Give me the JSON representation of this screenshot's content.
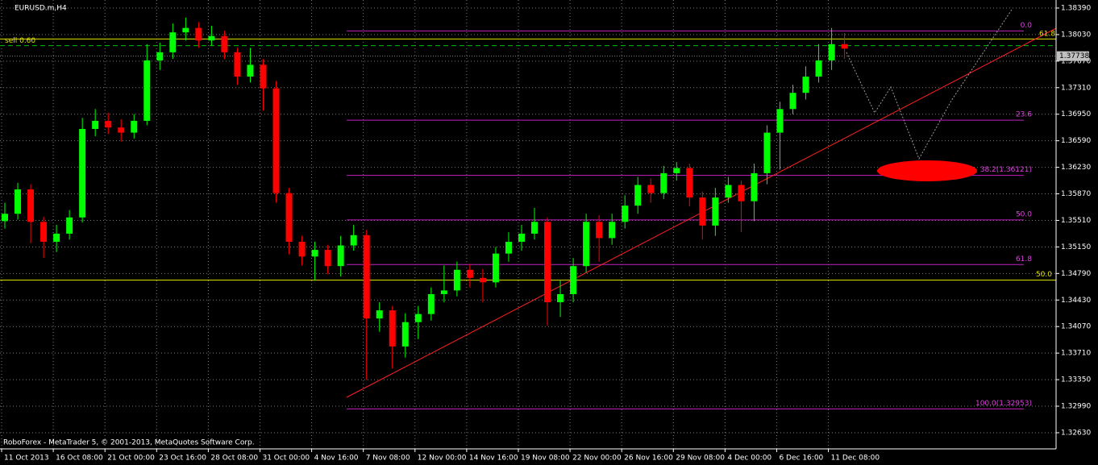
{
  "chart_data": {
    "type": "candlestick",
    "title": "EURUSD.m,H4",
    "footer": "RoboForex - MetaTrader 5, © 2001-2013, MetaQuotes Software Corp.",
    "up_color": "#00ff00",
    "down_color": "#ff0000",
    "grid": true,
    "x": [
      1,
      5,
      9,
      13,
      17,
      21,
      25,
      29,
      33,
      37,
      41,
      45,
      49,
      53,
      57,
      61,
      65,
      69,
      73,
      77,
      81,
      85,
      89,
      93,
      97,
      101,
      105,
      109,
      113,
      117,
      121,
      125,
      129,
      133,
      137,
      141,
      145,
      149,
      153,
      157,
      161,
      165,
      169,
      173,
      177,
      181,
      185,
      189,
      193,
      197,
      201,
      205,
      209,
      213,
      217,
      221,
      225,
      229,
      233,
      237,
      241,
      245,
      249,
      253,
      257,
      261
    ],
    "open": [
      1.355,
      1.356,
      1.3593,
      1.3549,
      1.3522,
      1.3533,
      1.3555,
      1.3675,
      1.3686,
      1.3677,
      1.367,
      1.3686,
      1.3768,
      1.3779,
      1.3806,
      1.3812,
      1.3795,
      1.3801,
      1.3779,
      1.3746,
      1.3762,
      1.373,
      1.3588,
      1.3522,
      1.3502,
      1.3511,
      1.3489,
      1.3517,
      1.3531,
      1.3418,
      1.3429,
      1.338,
      1.3413,
      1.3424,
      1.3451,
      1.3456,
      1.3484,
      1.3473,
      1.3467,
      1.3506,
      1.3522,
      1.3533,
      1.3549,
      1.344,
      1.3451,
      1.3489,
      1.3549,
      1.3527,
      1.3549,
      1.3571,
      1.3599,
      1.3588,
      1.3615,
      1.3622,
      1.3582,
      1.3544,
      1.3582,
      1.3599,
      1.3577,
      1.3615,
      1.367,
      1.3702,
      1.3724,
      1.3746,
      1.3768,
      1.379
    ],
    "high": [
      1.3575,
      1.3602,
      1.36,
      1.3556,
      1.3545,
      1.3565,
      1.369,
      1.3702,
      1.3697,
      1.3688,
      1.3695,
      1.379,
      1.3792,
      1.3818,
      1.3826,
      1.382,
      1.3815,
      1.3808,
      1.3785,
      1.3785,
      1.377,
      1.374,
      1.3595,
      1.353,
      1.3522,
      1.3518,
      1.353,
      1.3545,
      1.3538,
      1.344,
      1.3435,
      1.3425,
      1.3435,
      1.346,
      1.349,
      1.3495,
      1.3492,
      1.3485,
      1.3515,
      1.3535,
      1.3545,
      1.3568,
      1.3555,
      1.347,
      1.35,
      1.356,
      1.3558,
      1.356,
      1.3585,
      1.361,
      1.3608,
      1.3625,
      1.363,
      1.3628,
      1.359,
      1.3595,
      1.361,
      1.3605,
      1.3628,
      1.368,
      1.3712,
      1.3735,
      1.376,
      1.379,
      1.3812,
      1.3805
    ],
    "low": [
      1.354,
      1.3552,
      1.352,
      1.35,
      1.3508,
      1.3525,
      1.3548,
      1.3665,
      1.3668,
      1.3658,
      1.3662,
      1.368,
      1.3755,
      1.377,
      1.3795,
      1.3785,
      1.3788,
      1.377,
      1.3735,
      1.3738,
      1.37,
      1.3575,
      1.3505,
      1.349,
      1.347,
      1.3478,
      1.3475,
      1.351,
      1.3335,
      1.34,
      1.335,
      1.3365,
      1.339,
      1.3415,
      1.344,
      1.3448,
      1.346,
      1.344,
      1.346,
      1.3495,
      1.351,
      1.3525,
      1.3408,
      1.342,
      1.344,
      1.348,
      1.3495,
      1.3518,
      1.354,
      1.356,
      1.3575,
      1.358,
      1.3605,
      1.357,
      1.3525,
      1.353,
      1.3575,
      1.3535,
      1.355,
      1.36,
      1.362,
      1.3695,
      1.3715,
      1.3738,
      1.3755,
      1.377
    ],
    "close": [
      1.356,
      1.3593,
      1.3549,
      1.3522,
      1.3533,
      1.3555,
      1.3675,
      1.3686,
      1.3677,
      1.367,
      1.3686,
      1.3768,
      1.3779,
      1.3806,
      1.3812,
      1.3795,
      1.3801,
      1.3779,
      1.3746,
      1.3762,
      1.373,
      1.3588,
      1.3522,
      1.3502,
      1.3511,
      1.3489,
      1.3517,
      1.3531,
      1.3418,
      1.3429,
      1.338,
      1.3413,
      1.3424,
      1.3451,
      1.3456,
      1.3484,
      1.3473,
      1.3467,
      1.3506,
      1.3522,
      1.3533,
      1.3549,
      1.344,
      1.3451,
      1.3489,
      1.3549,
      1.3527,
      1.3549,
      1.3571,
      1.3599,
      1.3588,
      1.3615,
      1.3622,
      1.3582,
      1.3544,
      1.3582,
      1.3599,
      1.3577,
      1.3615,
      1.367,
      1.3702,
      1.3724,
      1.3746,
      1.3768,
      1.379,
      1.3784
    ],
    "xlim": [
      -0.5,
      326.5
    ],
    "ylim": [
      1.32411,
      1.38499
    ],
    "xticks": [
      {
        "value": 0,
        "label": "11 Oct 2013"
      },
      {
        "value": 16,
        "label": "16 Oct 08:00"
      },
      {
        "value": 32,
        "label": "21 Oct 00:00"
      },
      {
        "value": 48,
        "label": "23 Oct 16:00"
      },
      {
        "value": 64,
        "label": "28 Oct 08:00"
      },
      {
        "value": 80,
        "label": "31 Oct 00:00"
      },
      {
        "value": 96,
        "label": "4 Nov 16:00"
      },
      {
        "value": 112,
        "label": "7 Nov 08:00"
      },
      {
        "value": 128,
        "label": "12 Nov 00:00"
      },
      {
        "value": 144,
        "label": "14 Nov 16:00"
      },
      {
        "value": 160,
        "label": "19 Nov 08:00"
      },
      {
        "value": 176,
        "label": "22 Nov 00:00"
      },
      {
        "value": 192,
        "label": "26 Nov 16:00"
      },
      {
        "value": 208,
        "label": "29 Nov 08:00"
      },
      {
        "value": 224,
        "label": "4 Dec 00:00"
      },
      {
        "value": 240,
        "label": "6 Dec 16:00"
      },
      {
        "value": 256,
        "label": "11 Dec 08:00"
      }
    ],
    "yticks": [
      {
        "value": 1.3839,
        "label": "1.38390"
      },
      {
        "value": 1.3803,
        "label": "1.38030"
      },
      {
        "value": 1.3767,
        "label": "1.37670"
      },
      {
        "value": 1.3731,
        "label": "1.37310"
      },
      {
        "value": 1.3695,
        "label": "1.36950"
      },
      {
        "value": 1.3659,
        "label": "1.36590"
      },
      {
        "value": 1.3623,
        "label": "1.36230"
      },
      {
        "value": 1.3587,
        "label": "1.35870"
      },
      {
        "value": 1.3551,
        "label": "1.35510"
      },
      {
        "value": 1.3515,
        "label": "1.35150"
      },
      {
        "value": 1.3479,
        "label": "1.34790"
      },
      {
        "value": 1.3443,
        "label": "1.34430"
      },
      {
        "value": 1.3407,
        "label": "1.34070"
      },
      {
        "value": 1.3371,
        "label": "1.33710"
      },
      {
        "value": 1.3335,
        "label": "1.33350"
      },
      {
        "value": 1.3299,
        "label": "1.32990"
      },
      {
        "value": 1.3263,
        "label": "1.32630"
      }
    ],
    "fib_levels": [
      {
        "label": "0.0",
        "value": 1.38079
      },
      {
        "label": "23.6",
        "value": 1.36869
      },
      {
        "label": "38.2(1.36121)",
        "value": 1.36121
      },
      {
        "label": "50.0",
        "value": 1.35516
      },
      {
        "label": "61.8",
        "value": 1.34911
      },
      {
        "label": "100.0(1.32953)",
        "value": 1.32953
      }
    ],
    "sell_line": {
      "label": "sell 0.60",
      "value": 1.3797
    },
    "stop_line": {
      "value": 1.3788
    },
    "support_line": {
      "label": "50.0",
      "value": 1.347
    },
    "bid": {
      "label": "1.37738",
      "value": 1.37738
    },
    "trend_label": "61.8"
  }
}
